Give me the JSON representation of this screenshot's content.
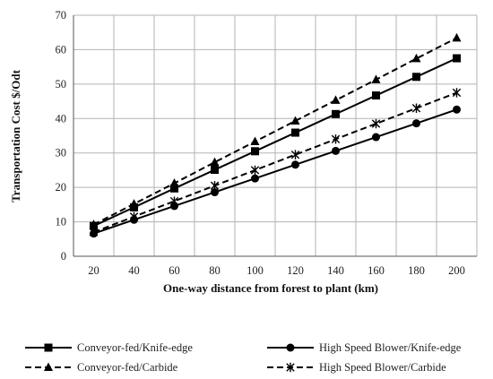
{
  "chart_data": {
    "type": "line",
    "title": "",
    "xlabel": "One-way distance from forest to plant (km)",
    "ylabel": "Transportation Cost $/Odt",
    "x": [
      20,
      40,
      60,
      80,
      100,
      120,
      140,
      160,
      180,
      200
    ],
    "xlim": [
      10,
      210
    ],
    "ylim": [
      0,
      70
    ],
    "yticks": [
      0,
      10,
      20,
      30,
      40,
      50,
      60,
      70
    ],
    "grid": true,
    "legend_position": "bottom",
    "series": [
      {
        "name": "Conveyor-fed/Knife-edge",
        "marker": "square",
        "dash": "solid",
        "color": "#000000",
        "values": [
          8.8,
          14.2,
          19.7,
          25.1,
          30.5,
          35.9,
          41.3,
          46.7,
          52.1,
          57.5
        ]
      },
      {
        "name": "High Speed Blower/Knife-edge",
        "marker": "circle",
        "dash": "solid",
        "color": "#000000",
        "values": [
          6.6,
          10.6,
          14.6,
          18.6,
          22.6,
          26.6,
          30.6,
          34.6,
          38.6,
          42.6
        ]
      },
      {
        "name": "Conveyor-fed/Carbide",
        "marker": "triangle",
        "dash": "dashed",
        "color": "#000000",
        "values": [
          9.2,
          15.2,
          21.2,
          27.3,
          33.3,
          39.3,
          45.3,
          51.3,
          57.4,
          63.4
        ]
      },
      {
        "name": "High Speed Blower/Carbide",
        "marker": "star",
        "dash": "dashed",
        "color": "#000000",
        "values": [
          7.0,
          11.5,
          16.0,
          20.5,
          25.0,
          29.5,
          34.0,
          38.5,
          43.0,
          47.5
        ]
      }
    ]
  }
}
